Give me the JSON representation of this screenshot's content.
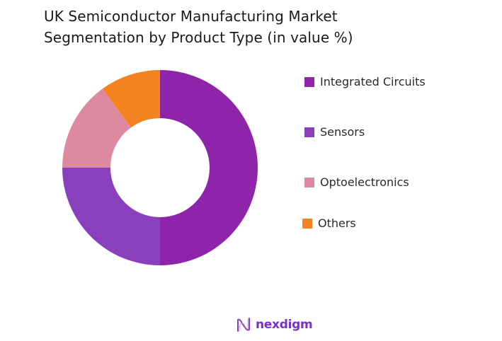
{
  "title": {
    "line1": "UK Semiconductor Manufacturing Market",
    "line2": "Segmentation by Product Type (in value %)"
  },
  "legend": [
    {
      "label": "Integrated Circuits",
      "color": "#8e24aa"
    },
    {
      "label": "Sensors",
      "color": "#8a3fbd"
    },
    {
      "label": "Optoelectronics",
      "color": "#dd8aa0"
    },
    {
      "label": "Others",
      "color": "#f58220"
    }
  ],
  "logo": {
    "text": "nexdigm",
    "icon": "nexdigm-wave-icon"
  },
  "chart_data": {
    "type": "pie",
    "subtype": "donut",
    "title": "UK Semiconductor Manufacturing Market Segmentation by Product Type (in value %)",
    "categories": [
      "Integrated Circuits",
      "Sensors",
      "Optoelectronics",
      "Others"
    ],
    "values": [
      50,
      25,
      15,
      10
    ],
    "colors": [
      "#8e24aa",
      "#8a3fbd",
      "#dd8aa0",
      "#f58220"
    ],
    "unit": "%",
    "legend_position": "right",
    "data_labels": false
  }
}
